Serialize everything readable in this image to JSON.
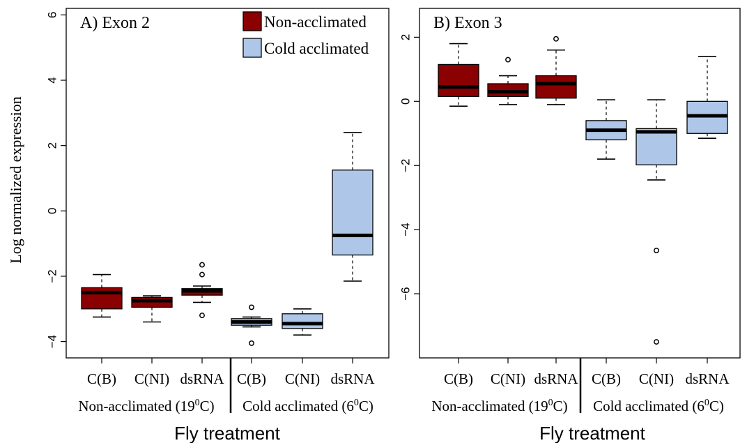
{
  "colors": {
    "non_acclimated": "#8B0000",
    "cold_acclimated": "#AEC6E8",
    "median": "#000000"
  },
  "legend": {
    "items": [
      {
        "label": "Non-acclimated",
        "color": "#8B0000"
      },
      {
        "label": "Cold acclimated",
        "color": "#AEC6E8"
      }
    ],
    "placement": "top-right of panel A"
  },
  "chart_data": [
    {
      "type": "box",
      "title": "A) Exon 2",
      "ylabel": "Log normalized expression",
      "xlabel": "Fly treatment",
      "ylim": [
        -4.5,
        6.2
      ],
      "yticks": [
        6,
        4,
        2,
        0,
        -2,
        -4
      ],
      "categories": [
        "C(B)",
        "C(NI)",
        "dsRNA",
        "C(B)",
        "C(NI)",
        "dsRNA"
      ],
      "groups": [
        {
          "label": "Non-acclimated (19°C)",
          "label_parts": [
            "Non-acclimated (19",
            "0",
            "C)"
          ]
        },
        {
          "label": "Cold acclimated (6°C)",
          "label_parts": [
            "Cold acclimated (6",
            "0",
            "C)"
          ]
        }
      ],
      "boxes": [
        {
          "category": "C(B)",
          "group": "Non-acclimated",
          "whisker_low": -3.25,
          "q1": -3.0,
          "median": -2.5,
          "q3": -2.35,
          "whisker_high": -1.95,
          "outliers": []
        },
        {
          "category": "C(NI)",
          "group": "Non-acclimated",
          "whisker_low": -3.4,
          "q1": -2.95,
          "median": -2.75,
          "q3": -2.65,
          "whisker_high": -2.6,
          "outliers": []
        },
        {
          "category": "dsRNA",
          "group": "Non-acclimated",
          "whisker_low": -2.8,
          "q1": -2.58,
          "median": -2.45,
          "q3": -2.38,
          "whisker_high": -2.3,
          "outliers": [
            -1.65,
            -1.95,
            -3.2
          ]
        },
        {
          "category": "C(B)",
          "group": "Cold acclimated",
          "whisker_low": -3.55,
          "q1": -3.5,
          "median": -3.4,
          "q3": -3.3,
          "whisker_high": -3.25,
          "outliers": [
            -2.95,
            -4.05
          ]
        },
        {
          "category": "C(NI)",
          "group": "Cold acclimated",
          "whisker_low": -3.8,
          "q1": -3.6,
          "median": -3.45,
          "q3": -3.15,
          "whisker_high": -3.0,
          "outliers": []
        },
        {
          "category": "dsRNA",
          "group": "Cold acclimated",
          "whisker_low": -2.15,
          "q1": -1.35,
          "median": -0.75,
          "q3": 1.25,
          "whisker_high": 2.4,
          "outliers": []
        }
      ]
    },
    {
      "type": "box",
      "title": "B) Exon 3",
      "ylabel": "",
      "xlabel": "Fly treatment",
      "ylim": [
        -8.0,
        2.9
      ],
      "yticks": [
        2,
        0,
        -2,
        -4,
        -6
      ],
      "categories": [
        "C(B)",
        "C(NI)",
        "dsRNA",
        "C(B)",
        "C(NI)",
        "dsRNA"
      ],
      "groups": [
        {
          "label": "Non-acclimated (19°C)",
          "label_parts": [
            "Non-acclimated (19",
            "0",
            "C)"
          ]
        },
        {
          "label": "Cold acclimated (6°C)",
          "label_parts": [
            "Cold acclimated (6",
            "0",
            "C)"
          ]
        }
      ],
      "boxes": [
        {
          "category": "C(B)",
          "group": "Non-acclimated",
          "whisker_low": -0.15,
          "q1": 0.15,
          "median": 0.45,
          "q3": 1.15,
          "whisker_high": 1.8,
          "outliers": []
        },
        {
          "category": "C(NI)",
          "group": "Non-acclimated",
          "whisker_low": -0.1,
          "q1": 0.15,
          "median": 0.3,
          "q3": 0.55,
          "whisker_high": 0.8,
          "outliers": [
            1.3
          ]
        },
        {
          "category": "dsRNA",
          "group": "Non-acclimated",
          "whisker_low": -0.1,
          "q1": 0.1,
          "median": 0.55,
          "q3": 0.8,
          "whisker_high": 1.6,
          "outliers": [
            1.95
          ]
        },
        {
          "category": "C(B)",
          "group": "Cold acclimated",
          "whisker_low": -1.8,
          "q1": -1.2,
          "median": -0.9,
          "q3": -0.6,
          "whisker_high": 0.05,
          "outliers": []
        },
        {
          "category": "C(NI)",
          "group": "Cold acclimated",
          "whisker_low": -2.45,
          "q1": -1.98,
          "median": -0.95,
          "q3": -0.85,
          "whisker_high": 0.05,
          "outliers": [
            -4.65,
            -7.5
          ]
        },
        {
          "category": "dsRNA",
          "group": "Cold acclimated",
          "whisker_low": -1.15,
          "q1": -1.0,
          "median": -0.45,
          "q3": 0.0,
          "whisker_high": 1.4,
          "outliers": []
        }
      ]
    }
  ]
}
